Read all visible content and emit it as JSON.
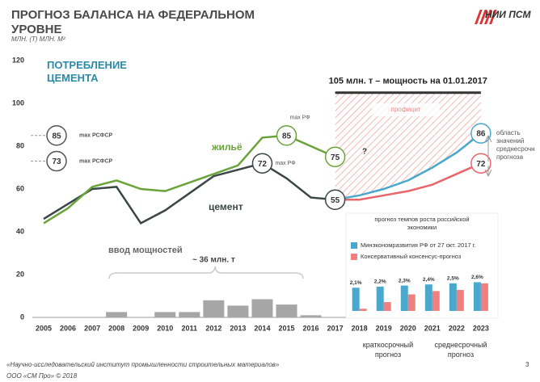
{
  "header": {
    "title": "ПРОГНОЗ БАЛАНСА НА ФЕДЕРАЛЬНОМ УРОВНЕ",
    "units": "МЛН. (Т) МЛН. М²",
    "logo": "НИИ ПСМ"
  },
  "chart_data": [
    {
      "type": "line",
      "categories": [
        "2005",
        "2006",
        "2007",
        "2008",
        "2009",
        "2010",
        "2011",
        "2012",
        "2013",
        "2014",
        "2015",
        "2016",
        "2017",
        "2018",
        "2019",
        "2020",
        "2021",
        "2022",
        "2023"
      ],
      "ylim": [
        0,
        120
      ],
      "yticks": [
        0,
        20,
        40,
        60,
        80,
        100,
        120
      ],
      "series": [
        {
          "name": "цемент",
          "type": "line",
          "color": "#3b4646",
          "values": [
            46,
            53,
            60,
            61,
            44,
            50,
            58,
            66,
            69,
            72,
            65,
            56,
            55,
            null,
            null,
            null,
            null,
            null,
            null
          ]
        },
        {
          "name": "жильё",
          "type": "line",
          "color": "#6aa33a",
          "values": [
            44,
            51,
            61,
            64,
            60,
            59,
            63,
            67,
            71,
            84,
            85,
            80,
            75,
            null,
            null,
            null,
            null,
            null,
            null
          ]
        },
        {
          "type": "line",
          "color": "#4aa8cc",
          "values": [
            null,
            null,
            null,
            null,
            null,
            null,
            null,
            null,
            null,
            null,
            null,
            null,
            55,
            57,
            60,
            64,
            70,
            77,
            86
          ]
        },
        {
          "type": "line",
          "color": "#e8666a",
          "values": [
            null,
            null,
            null,
            null,
            null,
            null,
            null,
            null,
            null,
            null,
            null,
            null,
            55,
            55,
            57,
            59,
            62,
            67,
            72
          ]
        },
        {
          "name": "ввод мощностей",
          "type": "bar",
          "color": "#a6a6a6",
          "values": [
            null,
            null,
            null,
            2.5,
            null,
            2.5,
            2.5,
            8,
            5.5,
            8.5,
            6,
            1,
            null,
            null,
            null,
            null,
            null,
            null,
            null
          ]
        }
      ],
      "references": [
        {
          "value": 85,
          "label": "max РСФСР"
        },
        {
          "value": 73,
          "label": "max РСФСР"
        }
      ],
      "capacity": {
        "value": 105,
        "label": "105 млн. т – мощность на 01.01.2017"
      },
      "annotations": [
        "ПОТРЕБЛЕНИЕ ЦЕМЕНТА",
        "max РФ",
        "max РФ",
        "?",
        "~ 36 млн. т",
        "профицит",
        "область значений среднесрочн прогноза",
        "краткосрочный прогноз",
        "среднесрочный прогноз"
      ]
    },
    {
      "type": "bar",
      "title": "прогноз темпов роста российской экономики",
      "ylim": [
        0,
        3
      ],
      "series": [
        {
          "name": "Минэкономразвития РФ от 27 окт. 2017 г.",
          "color": "#4aa8cc",
          "values": [
            2.1,
            2.2,
            2.3,
            2.4,
            2.5,
            2.6
          ],
          "value_labels": [
            "2,1%",
            "2,2%",
            "2,3%",
            "2,4%",
            "2,5%",
            "2,6%"
          ]
        },
        {
          "name": "Консервативный консенсус-прогноз",
          "color": "#f08080",
          "values": [
            0.2,
            0.8,
            1.5,
            1.8,
            1.9,
            2.5
          ]
        }
      ]
    }
  ],
  "footer": {
    "org": "«Научно-исследовательский институт промышленности строительных материалов»",
    "copyright": "ООО «СМ Про» © 2018",
    "page": "3"
  }
}
